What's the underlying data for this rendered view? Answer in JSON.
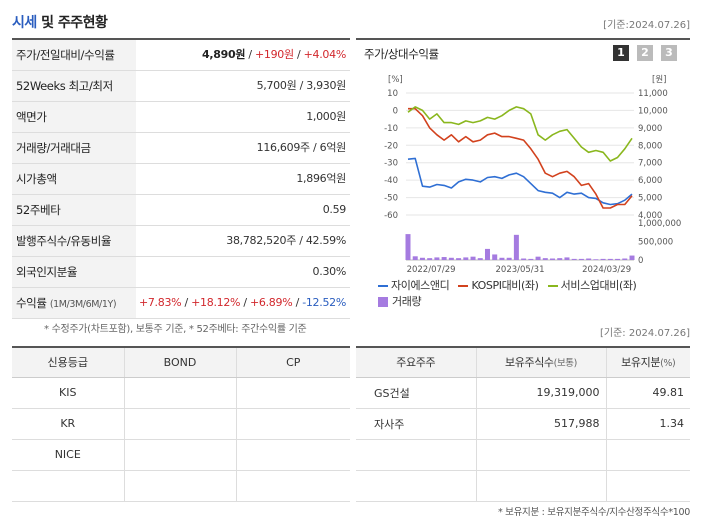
{
  "header": {
    "title_prefix": "시세",
    "title_rest": " 및 주주현황",
    "date": "[기준:2024.07.26]"
  },
  "summary": {
    "rows": [
      {
        "label": "주가/전일대비/수익률",
        "price": "4,890원",
        "sep1": " / ",
        "change": "+190원",
        "sep2": " / ",
        "rate": "+4.04%"
      },
      {
        "label": "52Weeks 최고/최저",
        "value": "5,700원 / 3,930원"
      },
      {
        "label": "액면가",
        "value": "1,000원"
      },
      {
        "label": "거래량/거래대금",
        "value": "116,609주 / 6억원"
      },
      {
        "label": "시가총액",
        "value": "1,896억원"
      },
      {
        "label": "52주베타",
        "value": "0.59"
      },
      {
        "label": "발행주식수/유동비율",
        "value": "38,782,520주 / 42.59%"
      },
      {
        "label": "외국인지분율",
        "value": "0.30%"
      },
      {
        "label": "수익률",
        "label_sub": "(1M/3M/6M/1Y)",
        "r1": "+7.83%",
        "r2": "+18.12%",
        "r3": "+6.89%",
        "r4": "-12.52%",
        "slash": "/"
      }
    ],
    "note": "* 수정주가(차트포함), 보통주 기준, * 52주베타: 주간수익률 기준"
  },
  "chart_panel": {
    "title": "주가/상대수익률",
    "pages": [
      "1",
      "2",
      "3"
    ],
    "left_unit": "[%]",
    "right_unit": "[원]"
  },
  "chart_data": {
    "type": "line",
    "left_axis": {
      "ticks": [
        "10",
        "0",
        "-10",
        "-20",
        "-30",
        "-40",
        "-50",
        "-60"
      ],
      "ylim": [
        -60,
        10
      ]
    },
    "right_axis": {
      "ticks": [
        "11,000",
        "10,000",
        "9,000",
        "8,000",
        "7,000",
        "6,000",
        "5,000",
        "4,000"
      ],
      "ylim": [
        4000,
        11000
      ]
    },
    "volume_axis": {
      "ticks": [
        "1,000,000",
        "500,000",
        "0"
      ],
      "ylim": [
        0,
        1000000
      ]
    },
    "x_ticks": [
      "2022/07/29",
      "2023/05/31",
      "2024/03/29"
    ],
    "series": [
      {
        "name": "자이에스앤디",
        "color": "#2f6fd4",
        "axis": "right",
        "values": [
          7200,
          7250,
          5650,
          5600,
          5750,
          5700,
          5550,
          5900,
          6050,
          6000,
          5900,
          6150,
          6200,
          6100,
          6300,
          6400,
          6200,
          5800,
          5400,
          5300,
          5250,
          5000,
          5300,
          5200,
          5250,
          5000,
          4950,
          4700,
          4600,
          4650,
          4850,
          5200
        ]
      },
      {
        "name": "KOSPI대비(좌)",
        "color": "#d2421e",
        "axis": "left",
        "values": [
          1,
          1,
          -3,
          -10,
          -14,
          -17,
          -14,
          -18,
          -15,
          -18,
          -17,
          -14,
          -13,
          -15,
          -15,
          -16,
          -17,
          -22,
          -28,
          -36,
          -38,
          -36,
          -35,
          -38,
          -43,
          -42,
          -48,
          -56,
          -56,
          -54,
          -54,
          -49
        ]
      },
      {
        "name": "서비스업대비(좌)",
        "color": "#8ab71e",
        "axis": "left",
        "values": [
          -1,
          2,
          0,
          -5,
          -2,
          -7,
          -7,
          -8,
          -6,
          -7,
          -6,
          -4,
          -5,
          -3,
          0,
          2,
          1,
          -2,
          -14,
          -17,
          -14,
          -12,
          -11,
          -16,
          -21,
          -24,
          -23,
          -24,
          -29,
          -27,
          -22,
          -16
        ]
      },
      {
        "name": "거래량",
        "color": "#a57be0",
        "axis": "volume",
        "values": [
          700000,
          100000,
          60000,
          50000,
          70000,
          80000,
          60000,
          50000,
          70000,
          90000,
          50000,
          300000,
          150000,
          60000,
          60000,
          680000,
          40000,
          30000,
          90000,
          50000,
          40000,
          50000,
          70000,
          30000,
          30000,
          40000,
          20000,
          30000,
          30000,
          30000,
          40000,
          120000
        ]
      }
    ]
  },
  "credit": {
    "headers": [
      "신용등급",
      "BOND",
      "CP"
    ],
    "rows": [
      [
        "KIS",
        "",
        ""
      ],
      [
        "KR",
        "",
        ""
      ],
      [
        "NICE",
        "",
        ""
      ],
      [
        "",
        "",
        ""
      ]
    ]
  },
  "holders": {
    "date": "[기준: 2024.07.26]",
    "headers": [
      "주요주주",
      "보유주식수",
      "(보통)",
      "보유지분",
      "(%)"
    ],
    "rows": [
      [
        "GS건설",
        "19,319,000",
        "49.81"
      ],
      [
        "자사주",
        "517,988",
        "1.34"
      ],
      [
        "",
        "",
        ""
      ],
      [
        "",
        "",
        ""
      ]
    ],
    "note": "* 보유지분 : 보유지분주식수/지수산정주식수*100"
  }
}
